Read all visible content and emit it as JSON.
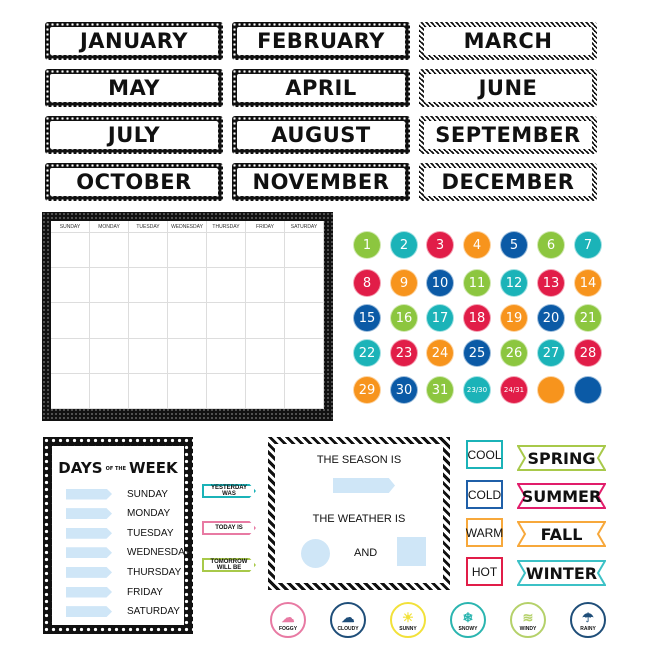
{
  "months": [
    {
      "label": "JANUARY",
      "style": "dots"
    },
    {
      "label": "FEBRUARY",
      "style": "dots"
    },
    {
      "label": "MARCH",
      "style": "stripe"
    },
    {
      "label": "MAY",
      "style": "dots"
    },
    {
      "label": "APRIL",
      "style": "dots"
    },
    {
      "label": "JUNE",
      "style": "stripe"
    },
    {
      "label": "JULY",
      "style": "dots"
    },
    {
      "label": "AUGUST",
      "style": "dots"
    },
    {
      "label": "SEPTEMBER",
      "style": "stripe"
    },
    {
      "label": "OCTOBER",
      "style": "dots"
    },
    {
      "label": "NOVEMBER",
      "style": "dots"
    },
    {
      "label": "DECEMBER",
      "style": "stripe"
    }
  ],
  "calendar": {
    "days": [
      "SUNDAY",
      "MONDAY",
      "TUESDAY",
      "WEDNESDAY",
      "THURSDAY",
      "FRIDAY",
      "SATURDAY"
    ]
  },
  "colors": {
    "green": "#8cc63f",
    "teal": "#1bb3b8",
    "red": "#e11d48",
    "orange": "#f7941d",
    "blue": "#0b5aa6"
  },
  "date_circles": [
    {
      "label": "1",
      "color": "green"
    },
    {
      "label": "2",
      "color": "teal"
    },
    {
      "label": "3",
      "color": "red"
    },
    {
      "label": "4",
      "color": "orange"
    },
    {
      "label": "5",
      "color": "blue"
    },
    {
      "label": "6",
      "color": "green"
    },
    {
      "label": "7",
      "color": "teal"
    },
    {
      "label": "8",
      "color": "red"
    },
    {
      "label": "9",
      "color": "orange"
    },
    {
      "label": "10",
      "color": "blue"
    },
    {
      "label": "11",
      "color": "green"
    },
    {
      "label": "12",
      "color": "teal"
    },
    {
      "label": "13",
      "color": "red"
    },
    {
      "label": "14",
      "color": "orange"
    },
    {
      "label": "15",
      "color": "blue"
    },
    {
      "label": "16",
      "color": "green"
    },
    {
      "label": "17",
      "color": "teal"
    },
    {
      "label": "18",
      "color": "red"
    },
    {
      "label": "19",
      "color": "orange"
    },
    {
      "label": "20",
      "color": "blue"
    },
    {
      "label": "21",
      "color": "green"
    },
    {
      "label": "22",
      "color": "teal"
    },
    {
      "label": "23",
      "color": "red"
    },
    {
      "label": "24",
      "color": "orange"
    },
    {
      "label": "25",
      "color": "blue"
    },
    {
      "label": "26",
      "color": "green"
    },
    {
      "label": "27",
      "color": "teal"
    },
    {
      "label": "28",
      "color": "red"
    },
    {
      "label": "29",
      "color": "orange"
    },
    {
      "label": "30",
      "color": "blue"
    },
    {
      "label": "31",
      "color": "green"
    },
    {
      "label": "23/30",
      "color": "teal"
    },
    {
      "label": "24/31",
      "color": "red"
    },
    {
      "label": "",
      "color": "orange"
    },
    {
      "label": "",
      "color": "blue"
    }
  ],
  "days_of_week": {
    "title_left": "DAYS",
    "title_mid": "OF THE",
    "title_right": "WEEK",
    "days": [
      "SUNDAY",
      "MONDAY",
      "TUESDAY",
      "WEDNESDAY",
      "THURSDAY",
      "FRIDAY",
      "SATURDAY"
    ]
  },
  "day_pointers": [
    {
      "label": "YESTERDAY WAS",
      "color": "#1bb3b8"
    },
    {
      "label": "TODAY IS",
      "color": "#e87aa3"
    },
    {
      "label": "TOMORROW WILL BE",
      "color": "#a8c94a"
    }
  ],
  "season_board": {
    "season_text": "THE SEASON IS",
    "weather_text": "THE WEATHER IS",
    "and_text": "AND"
  },
  "temperatures": [
    {
      "label": "COOL",
      "color": "#1bb3b8"
    },
    {
      "label": "COLD",
      "color": "#1f5fa8"
    },
    {
      "label": "WARM",
      "color": "#f7a83b"
    },
    {
      "label": "HOT",
      "color": "#e11d48"
    }
  ],
  "seasons": [
    {
      "label": "SPRING",
      "color": "#a8c94a"
    },
    {
      "label": "SUMMER",
      "color": "#e11d6b"
    },
    {
      "label": "FALL",
      "color": "#f7a83b"
    },
    {
      "label": "WINTER",
      "color": "#3cc1c6"
    }
  ],
  "weather": [
    {
      "label": "FOGGY",
      "icon": "fog-icon",
      "glyph": "☁",
      "color": "#e87aa3"
    },
    {
      "label": "CLOUDY",
      "icon": "cloud-icon",
      "glyph": "☁",
      "color": "#1f4e79"
    },
    {
      "label": "SUNNY",
      "icon": "sun-icon",
      "glyph": "☀",
      "color": "#f2e13a"
    },
    {
      "label": "SNOWY",
      "icon": "snowflake-icon",
      "glyph": "❄",
      "color": "#2bb5b0"
    },
    {
      "label": "WINDY",
      "icon": "wind-icon",
      "glyph": "≋",
      "color": "#b5d16a"
    },
    {
      "label": "RAINY",
      "icon": "rain-cloud-icon",
      "glyph": "☂",
      "color": "#1f4e79"
    }
  ]
}
